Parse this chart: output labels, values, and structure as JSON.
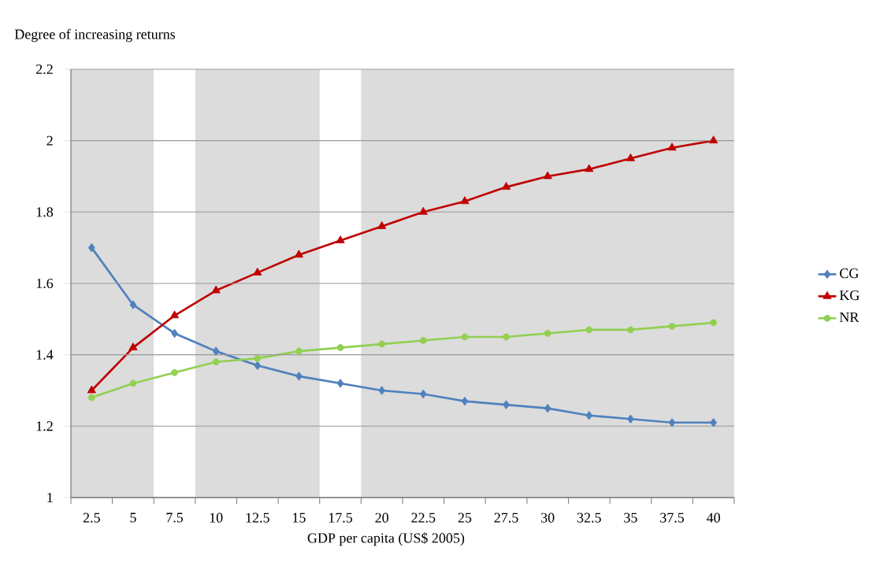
{
  "chart_data": {
    "type": "line",
    "xlabel": "GDP per capita (US$ 2005)",
    "ylabel": "Degree of increasing returns",
    "categories": [
      "2.5",
      "5",
      "7.5",
      "10",
      "12.5",
      "15",
      "17.5",
      "20",
      "22.5",
      "25",
      "27.5",
      "30",
      "32.5",
      "35",
      "37.5",
      "40"
    ],
    "series": [
      {
        "name": "CG",
        "color": "#4f81bd",
        "marker": "diamond",
        "values": [
          1.7,
          1.54,
          1.46,
          1.41,
          1.37,
          1.34,
          1.32,
          1.3,
          1.29,
          1.27,
          1.26,
          1.25,
          1.23,
          1.22,
          1.21,
          1.21
        ]
      },
      {
        "name": "KG",
        "color": "#c00000",
        "marker": "triangle",
        "values": [
          1.3,
          1.42,
          1.51,
          1.58,
          1.63,
          1.68,
          1.72,
          1.76,
          1.8,
          1.83,
          1.87,
          1.9,
          1.92,
          1.95,
          1.98,
          2.0
        ]
      },
      {
        "name": "NR",
        "color": "#92d050",
        "marker": "circle",
        "values": [
          1.28,
          1.32,
          1.35,
          1.38,
          1.39,
          1.41,
          1.42,
          1.43,
          1.44,
          1.45,
          1.45,
          1.46,
          1.47,
          1.47,
          1.48,
          1.49
        ]
      }
    ],
    "ylim": [
      1,
      2.2
    ],
    "yticks": [
      1,
      1.2,
      1.4,
      1.6,
      1.8,
      2,
      2.2
    ],
    "bands": [
      {
        "axis": "x",
        "from": "2.5",
        "to": "5",
        "color": "#dcdcdc"
      },
      {
        "axis": "x",
        "from": "10",
        "to": "15",
        "color": "#dcdcdc"
      },
      {
        "axis": "x",
        "from": "20",
        "to": "40",
        "color": "#dcdcdc"
      }
    ],
    "grid": "y",
    "legend": "right",
    "line_style": "solid"
  }
}
